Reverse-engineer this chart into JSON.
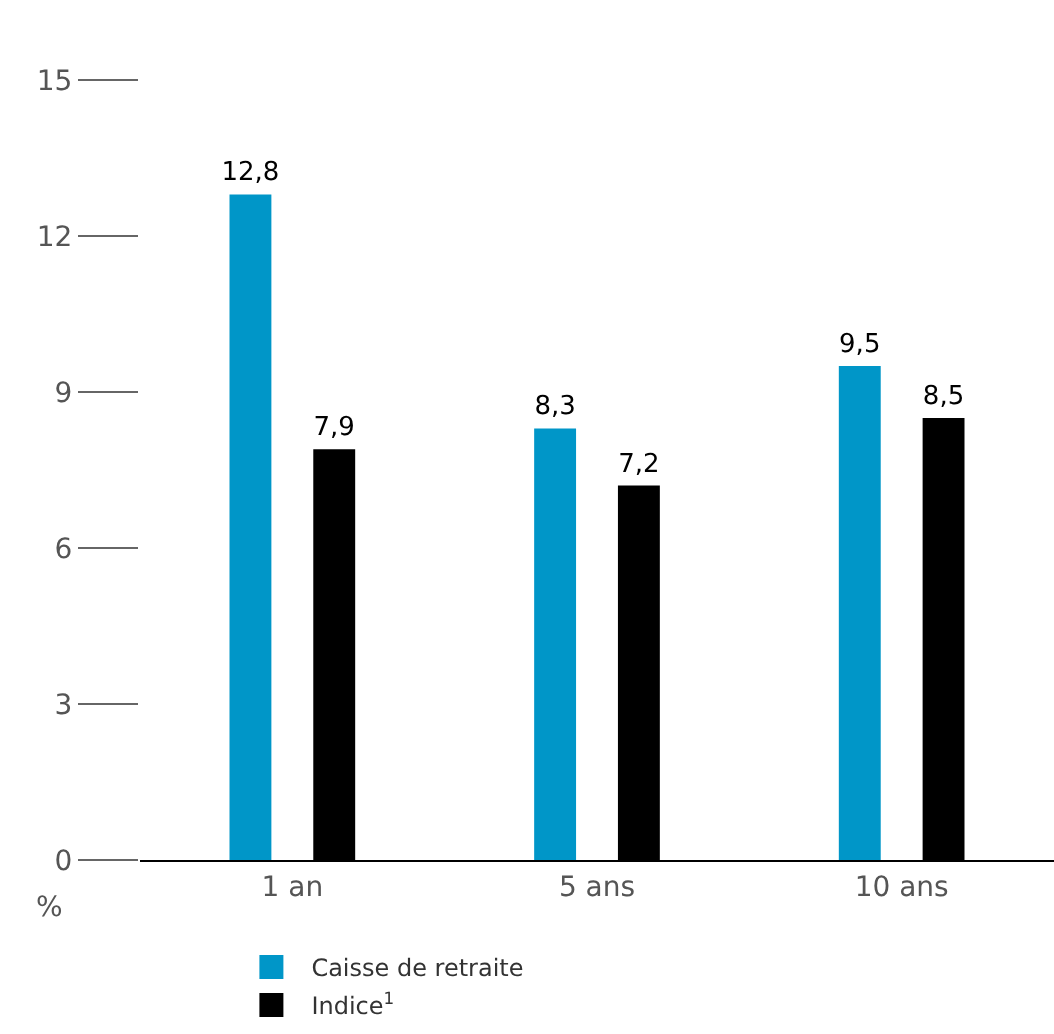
{
  "chart_data": {
    "type": "bar",
    "ylabel": "%",
    "categories": [
      "1 an",
      "5 ans",
      "10 ans"
    ],
    "series": [
      {
        "name": "Caisse de retraite",
        "color": "#0096c8",
        "values": [
          12.8,
          8.3,
          9.5
        ],
        "value_labels": [
          "12,8",
          "8,3",
          "9,5"
        ]
      },
      {
        "name": "Indice$^{1}$",
        "color": "#000000",
        "values": [
          7.9,
          7.2,
          8.5
        ],
        "value_labels": [
          "7,9",
          "7,2",
          "8,5"
        ]
      }
    ],
    "ylim": [
      0,
      15
    ],
    "yticks": [
      0,
      3,
      6,
      9,
      12,
      15
    ],
    "grid": false,
    "legend": "bottom left"
  }
}
